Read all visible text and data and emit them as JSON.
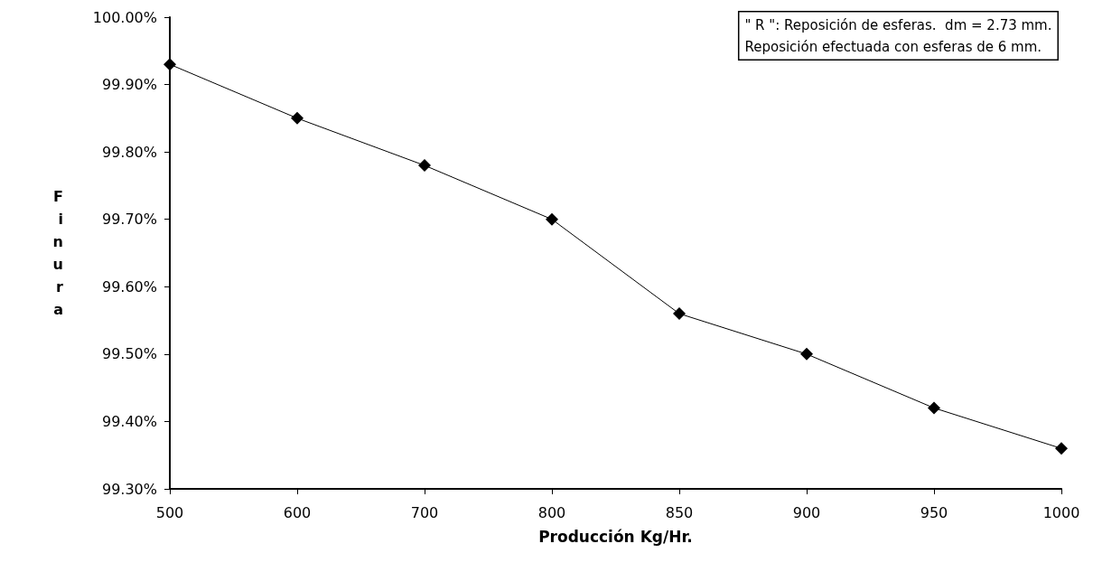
{
  "chart_data": {
    "type": "line",
    "categories": [
      "500",
      "600",
      "700",
      "800",
      "850",
      "900",
      "950",
      "1000"
    ],
    "values": [
      99.93,
      99.85,
      99.78,
      99.7,
      99.56,
      99.5,
      99.42,
      99.36
    ],
    "color": "#000000",
    "marker": "diamond",
    "xlabel": "Producción Kg/Hr.",
    "ylabel": "Finura",
    "ylim": [
      99.3,
      100
    ],
    "yticks": [
      {
        "value": 99.3,
        "label": "99.30%"
      },
      {
        "value": 99.4,
        "label": "99.40%"
      },
      {
        "value": 99.5,
        "label": "99.50%"
      },
      {
        "value": 99.6,
        "label": "99.60%"
      },
      {
        "value": 99.7,
        "label": "99.70%"
      },
      {
        "value": 99.8,
        "label": "99.80%"
      },
      {
        "value": 99.9,
        "label": "99.90%"
      },
      {
        "value": 100,
        "label": "100.00%"
      }
    ],
    "annotations": [
      "\" R \": Reposición de esferas.  dm = 2.73 mm.\nReposición efectuada con esferas de 6 mm."
    ],
    "grid": false
  }
}
